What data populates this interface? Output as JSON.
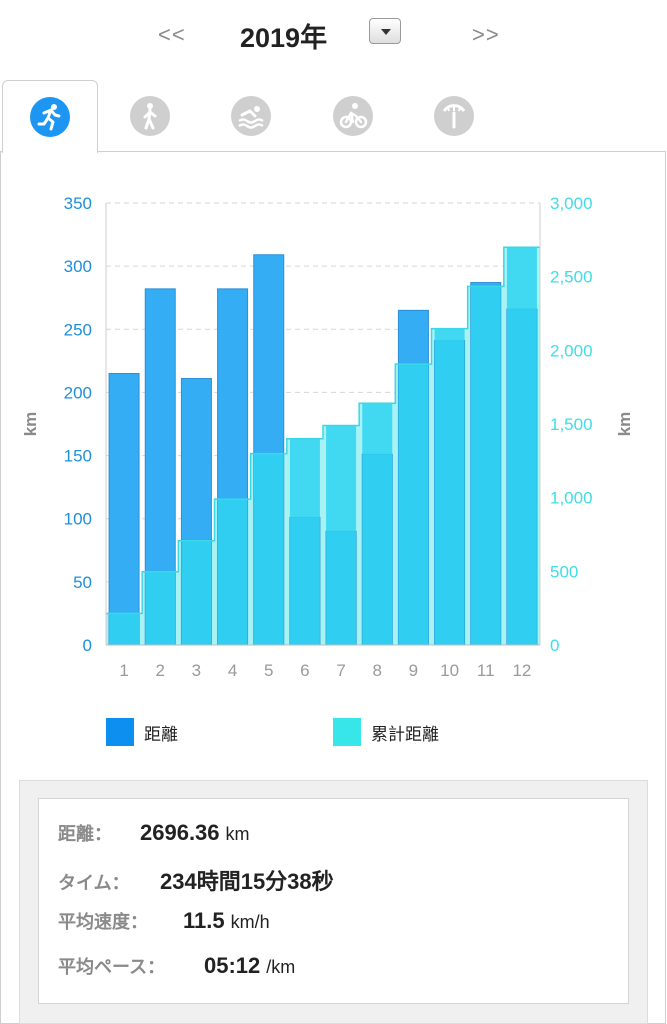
{
  "header": {
    "prev": "<<",
    "next": ">>",
    "year": "2019年"
  },
  "tabs": [
    {
      "name": "running-icon",
      "active": true
    },
    {
      "name": "walking-icon",
      "active": false
    },
    {
      "name": "swimming-icon",
      "active": false
    },
    {
      "name": "cycling-icon",
      "active": false
    },
    {
      "name": "other-icon",
      "active": false
    }
  ],
  "colors": {
    "distance_bar": "#35adf5",
    "distance_bar_border": "#2a8fd8",
    "cumulative": "#2fd3f0",
    "cumulative_fill": "#a8f2f4",
    "left_axis_text": "#1f8fdc",
    "right_axis_text": "#3fdde6",
    "legend_distance": "#0d8ff0",
    "legend_cumulative": "#37e6e8"
  },
  "chart_data": {
    "type": "bar",
    "categories": [
      "1",
      "2",
      "3",
      "4",
      "5",
      "6",
      "7",
      "8",
      "9",
      "10",
      "11",
      "12"
    ],
    "series": [
      {
        "name": "距離",
        "type": "bar",
        "axis": "left",
        "values": [
          215,
          282,
          211,
          282,
          309,
          101,
          90,
          151,
          265,
          241,
          287,
          266
        ]
      },
      {
        "name": "累計距離",
        "type": "step-area",
        "axis": "right",
        "values": [
          215,
          497,
          708,
          990,
          1299,
          1400,
          1490,
          1641,
          1906,
          2147,
          2434,
          2700
        ]
      }
    ],
    "y_left": {
      "label": "km",
      "ticks": [
        0,
        50,
        100,
        150,
        200,
        250,
        300,
        350
      ],
      "tick_labels": [
        "0",
        "50",
        "100",
        "150",
        "200",
        "250",
        "300",
        "350"
      ],
      "lim": [
        0,
        350
      ]
    },
    "y_right": {
      "label": "km",
      "ticks": [
        0,
        500,
        1000,
        1500,
        2000,
        2500,
        3000
      ],
      "tick_labels": [
        "0",
        "500",
        "1,000",
        "1,500",
        "2,000",
        "2,500",
        "3,000"
      ],
      "lim": [
        0,
        3000
      ]
    },
    "grid": true,
    "legend_position": "bottom"
  },
  "legend": [
    {
      "label": "距離"
    },
    {
      "label": "累計距離"
    }
  ],
  "summary": {
    "distance": {
      "label": "距離：",
      "value": "2696.36",
      "unit": "km"
    },
    "time": {
      "label": "タイム：",
      "value": "234時間15分38秒"
    },
    "avg_speed": {
      "label": "平均速度：",
      "value": "11.5",
      "unit": "km/h"
    },
    "avg_pace": {
      "label": "平均ペース：",
      "value": "05:12",
      "unit": "/km"
    }
  }
}
